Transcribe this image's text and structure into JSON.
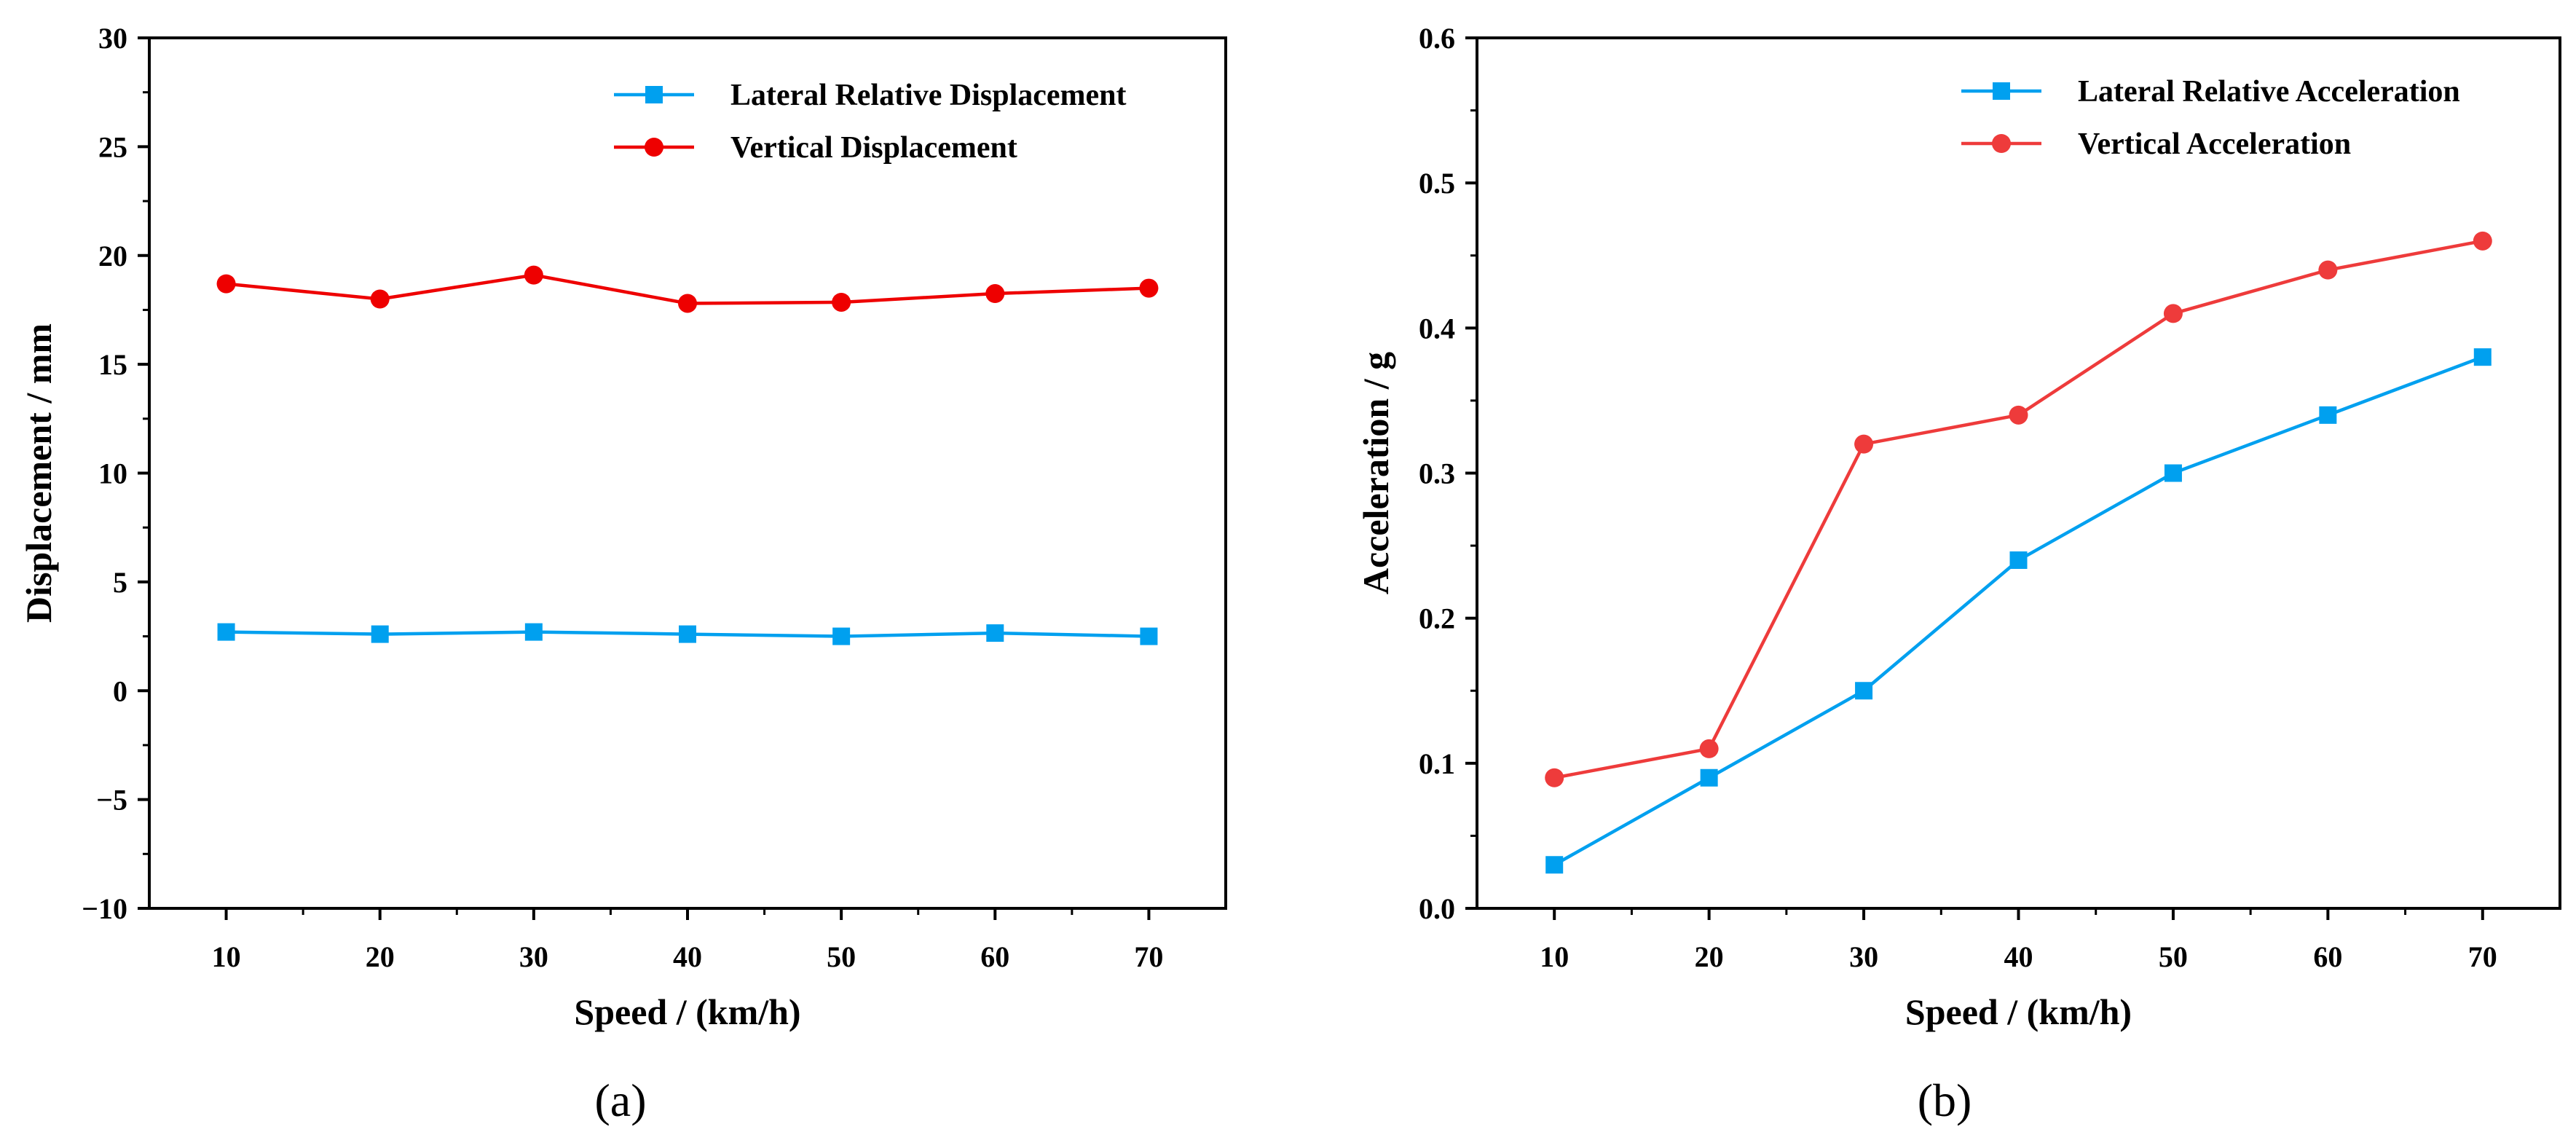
{
  "chart_data": [
    {
      "type": "line",
      "panel_label": "(a)",
      "xlabel": "Speed / (km/h)",
      "ylabel": "Displacement / mm",
      "x": [
        10,
        20,
        30,
        40,
        50,
        60,
        70
      ],
      "xlim": [
        5,
        75
      ],
      "ylim": [
        -10,
        30
      ],
      "xticks": [
        "10",
        "20",
        "30",
        "40",
        "50",
        "60",
        "70"
      ],
      "yticks": [
        "−10",
        "−5",
        "0",
        "5",
        "10",
        "15",
        "20",
        "25",
        "30"
      ],
      "legend_position": "top-right",
      "grid": false,
      "series": [
        {
          "name": "Lateral Relative Displacement",
          "marker": "square",
          "color": "#00a0ef",
          "values": [
            2.7,
            2.6,
            2.7,
            2.6,
            2.5,
            2.65,
            2.5
          ]
        },
        {
          "name": "Vertical Displacement",
          "marker": "circle",
          "color": "#ee0000",
          "values": [
            18.7,
            18.0,
            19.1,
            17.8,
            17.85,
            18.25,
            18.5
          ]
        }
      ]
    },
    {
      "type": "line",
      "panel_label": "(b)",
      "xlabel": "Speed / (km/h)",
      "ylabel": "Acceleration / g",
      "x": [
        10,
        20,
        30,
        40,
        50,
        60,
        70
      ],
      "xlim": [
        5,
        75
      ],
      "ylim": [
        0,
        0.6
      ],
      "xticks": [
        "10",
        "20",
        "30",
        "40",
        "50",
        "60",
        "70"
      ],
      "yticks": [
        "0.0",
        "0.1",
        "0.2",
        "0.3",
        "0.4",
        "0.5",
        "0.6"
      ],
      "legend_position": "top-right",
      "grid": false,
      "series": [
        {
          "name": "Lateral Relative Acceleration",
          "marker": "square",
          "color": "#00a0ef",
          "values": [
            0.03,
            0.09,
            0.15,
            0.24,
            0.3,
            0.34,
            0.38
          ]
        },
        {
          "name": "Vertical Acceleration",
          "marker": "circle",
          "color": "#ee3b3b",
          "values": [
            0.09,
            0.11,
            0.32,
            0.34,
            0.41,
            0.44,
            0.46
          ]
        }
      ]
    }
  ]
}
